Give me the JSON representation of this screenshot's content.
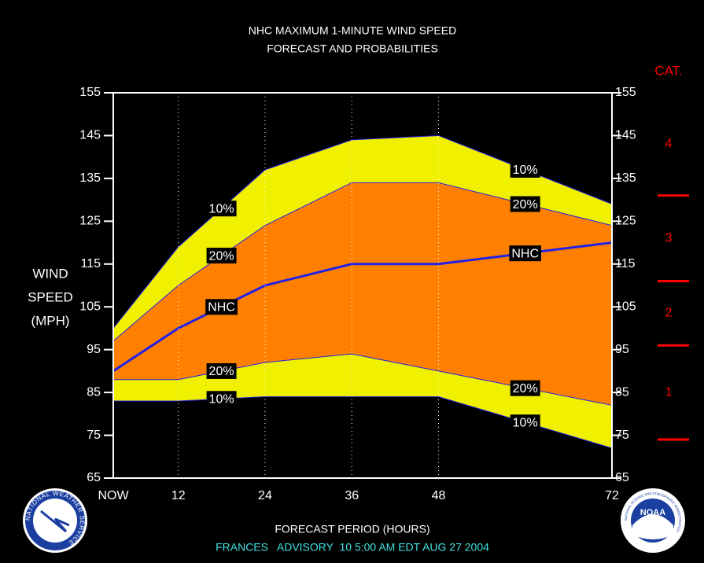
{
  "chart_data": {
    "type": "band",
    "title": [
      "NHC MAXIMUM 1-MINUTE WIND SPEED",
      "FORECAST AND PROBABILITIES"
    ],
    "ylabel": [
      "WIND",
      "SPEED",
      "(MPH)"
    ],
    "xlabel": "FORECAST PERIOD (HOURS)",
    "footer": "FRANCES   ADVISORY  10 5:00 AM EDT AUG 27 2004",
    "x": [
      3,
      12,
      24,
      36,
      48,
      72
    ],
    "xlim": [
      3,
      72
    ],
    "xticks": [
      {
        "value": 3,
        "label": "NOW"
      },
      12,
      24,
      36,
      48,
      72
    ],
    "ylim": [
      65,
      155
    ],
    "yticks": [
      65,
      75,
      85,
      95,
      105,
      115,
      125,
      135,
      145,
      155
    ],
    "y2lim": [
      65,
      155
    ],
    "y2ticks": [
      65,
      75,
      85,
      95,
      105,
      115,
      125,
      135,
      145,
      155
    ],
    "series": [
      {
        "name": "10%",
        "color": "#f0f000",
        "values": [
          100,
          119,
          137,
          144,
          145,
          129
        ]
      },
      {
        "name": "20%",
        "color": "#ff8000",
        "values": [
          97,
          110,
          124,
          134,
          134,
          124
        ]
      },
      {
        "name": "NHC",
        "color": "#2020e8",
        "values": [
          90,
          100,
          110,
          115,
          115,
          120
        ]
      },
      {
        "name": "20%",
        "color": "#ff8000",
        "values": [
          88,
          88,
          92,
          94,
          90,
          82
        ]
      },
      {
        "name": "10%",
        "color": "#f0f000",
        "values": [
          83,
          83,
          84,
          84,
          84,
          72
        ]
      }
    ],
    "category_title": "CAT.",
    "category_labels": [
      "1",
      "2",
      "3",
      "4"
    ],
    "category_bounds": [
      74,
      96,
      111,
      131
    ],
    "category_color": "#ff0000",
    "footer_color": "#40e0e0",
    "logos": {
      "left": "NATIONAL WEATHER SERVICE",
      "right": "NOAA",
      "right_ring": "NATIONAL OCEANIC AND ATMOSPHERIC ADMINISTRATION"
    }
  }
}
